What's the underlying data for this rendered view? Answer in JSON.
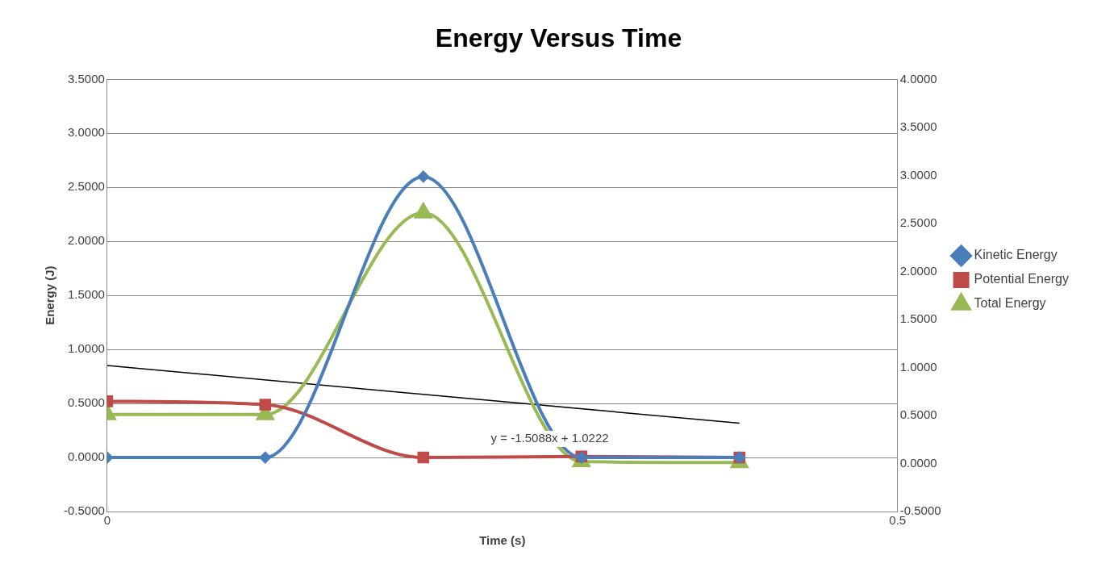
{
  "chart_data": {
    "type": "line",
    "title": "Energy Versus Time",
    "xlabel": "Time (s)",
    "ylabel": "Energy (J)",
    "series": [
      {
        "name": "Kinetic Energy",
        "color": "#4a7ebb",
        "marker": "diamond",
        "x": [
          0,
          0.1,
          0.2,
          0.3,
          0.4
        ],
        "values": [
          0,
          0,
          2.6,
          0,
          0
        ]
      },
      {
        "name": "Potential Energy",
        "color": "#be4b48",
        "marker": "square",
        "x": [
          0,
          0.1,
          0.2,
          0.3,
          0.4
        ],
        "values": [
          0.52,
          0.49,
          0,
          0.01,
          0
        ]
      },
      {
        "name": "Total Energy",
        "color": "#98b954",
        "marker": "triangle",
        "axis": "y2",
        "x": [
          0,
          0.1,
          0.2,
          0.3,
          0.4
        ],
        "values": [
          0.51,
          0.51,
          2.61,
          0.02,
          0.01
        ]
      },
      {
        "color": "#000000",
        "marker": "none",
        "axis": "y2",
        "x": [
          0,
          0.4
        ],
        "values": [
          1.02,
          0.42
        ]
      }
    ],
    "xlim": [
      0,
      0.5
    ],
    "xticks": [
      0,
      0.5
    ],
    "ylim": [
      -0.5,
      3.5
    ],
    "yticks": [
      {
        "value": -0.5,
        "label": "-0.5000"
      },
      {
        "value": 0,
        "label": "0.0000"
      },
      {
        "value": 0.5,
        "label": "0.5000"
      },
      {
        "value": 1,
        "label": "1.0000"
      },
      {
        "value": 1.5,
        "label": "1.5000"
      },
      {
        "value": 2,
        "label": "2.0000"
      },
      {
        "value": 2.5,
        "label": "2.5000"
      },
      {
        "value": 3,
        "label": "3.0000"
      },
      {
        "value": 3.5,
        "label": "3.5000"
      }
    ],
    "y2lim": [
      -0.5,
      4
    ],
    "y2ticks": [
      {
        "value": -0.5,
        "label": "-0.5000"
      },
      {
        "value": 0,
        "label": "0.0000"
      },
      {
        "value": 0.5,
        "label": "0.5000"
      },
      {
        "value": 1,
        "label": "1.0000"
      },
      {
        "value": 1.5,
        "label": "1.5000"
      },
      {
        "value": 2,
        "label": "2.0000"
      },
      {
        "value": 2.5,
        "label": "2.5000"
      },
      {
        "value": 3,
        "label": "3.0000"
      },
      {
        "value": 3.5,
        "label": "3.5000"
      },
      {
        "value": 4,
        "label": "4.0000"
      }
    ],
    "annotations": [
      {
        "text": "y = -1.5088x + 1.0222",
        "x": 0.28,
        "y": 0.47
      }
    ],
    "grid": "y",
    "legend": "right"
  }
}
